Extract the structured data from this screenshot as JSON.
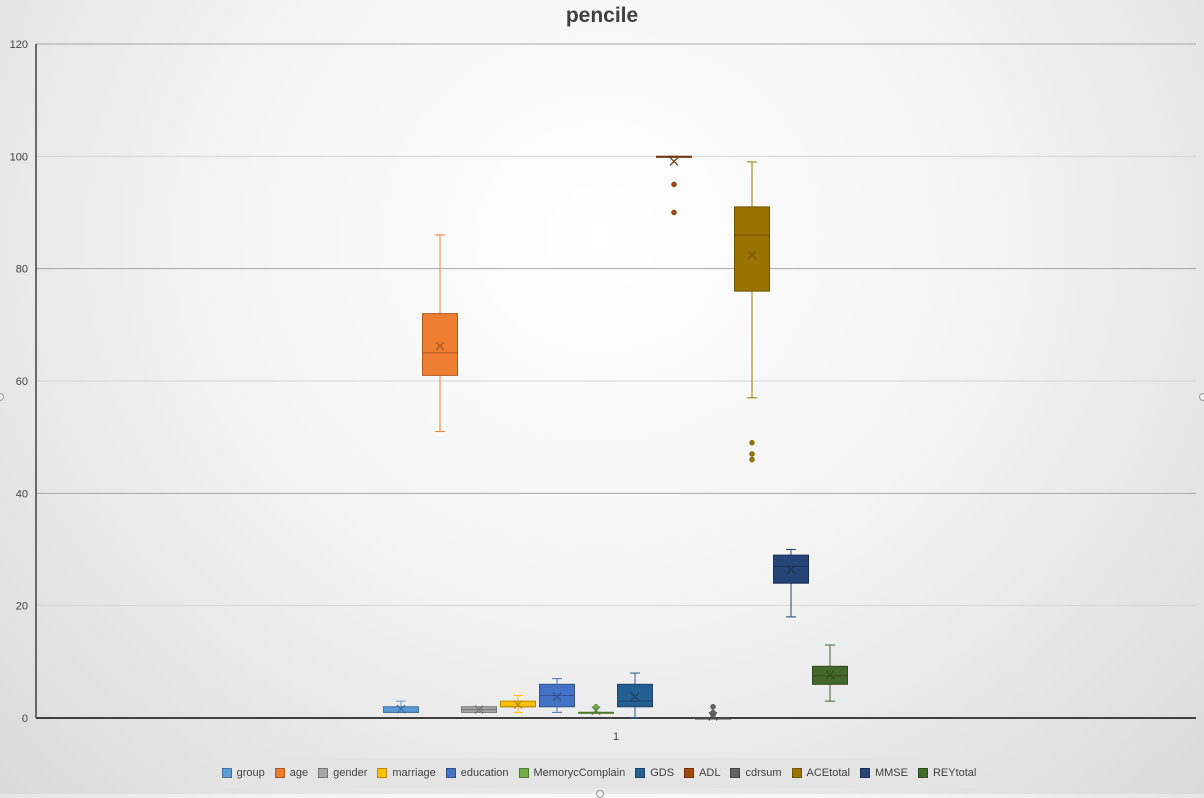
{
  "chart_data": {
    "type": "box",
    "title": "pencile",
    "xlabel": "",
    "ylabel": "",
    "categories": [
      "1"
    ],
    "ylim": [
      0,
      120
    ],
    "yticks": [
      0,
      20,
      40,
      60,
      80,
      100,
      120
    ],
    "grid": true,
    "legend_position": "bottom",
    "series": [
      {
        "name": "group",
        "color": "#5b9bd5",
        "min": 1,
        "q1": 1,
        "median": 1,
        "q3": 2,
        "max": 3,
        "mean": 1.6,
        "outliers": []
      },
      {
        "name": "age",
        "color": "#ed7d31",
        "min": 51,
        "q1": 61,
        "median": 65,
        "q3": 72,
        "max": 86,
        "mean": 66.2,
        "outliers": []
      },
      {
        "name": "gender",
        "color": "#a5a5a5",
        "min": 1,
        "q1": 1,
        "median": 1.5,
        "q3": 2,
        "max": 2,
        "mean": 1.5,
        "outliers": []
      },
      {
        "name": "marriage",
        "color": "#ffc000",
        "min": 1,
        "q1": 2,
        "median": 2,
        "q3": 3,
        "max": 4,
        "mean": 2.4,
        "outliers": []
      },
      {
        "name": "education",
        "color": "#4472c4",
        "min": 1,
        "q1": 2,
        "median": 4,
        "q3": 6,
        "max": 7,
        "mean": 3.8,
        "outliers": []
      },
      {
        "name": "MemorycComplain",
        "color": "#70ad47",
        "min": 1,
        "q1": 1,
        "median": 1,
        "q3": 1,
        "max": 1,
        "mean": 1.3,
        "outliers": [
          2
        ]
      },
      {
        "name": "GDS",
        "color": "#255e91",
        "min": 0,
        "q1": 2,
        "median": 3,
        "q3": 6,
        "max": 8,
        "mean": 3.8,
        "outliers": []
      },
      {
        "name": "ADL",
        "color": "#9e480e",
        "min": 100,
        "q1": 100,
        "median": 100,
        "q3": 100,
        "max": 100,
        "mean": 99.1,
        "outliers": [
          95,
          90
        ]
      },
      {
        "name": "cdrsum",
        "color": "#636363",
        "min": 0,
        "q1": 0,
        "median": 0,
        "q3": 0,
        "max": 0,
        "mean": 0.3,
        "outliers": [
          0.5,
          1,
          2
        ]
      },
      {
        "name": "ACEtotal",
        "color": "#997300",
        "min": 57,
        "q1": 76,
        "median": 86,
        "q3": 91,
        "max": 99,
        "mean": 82.4,
        "outliers": [
          49,
          47,
          46
        ]
      },
      {
        "name": "MMSE",
        "color": "#264478",
        "min": 18,
        "q1": 24,
        "median": 27,
        "q3": 29,
        "max": 30,
        "mean": 26.4,
        "outliers": []
      },
      {
        "name": "REYtotal",
        "color": "#43682b",
        "min": 3,
        "q1": 6,
        "median": 7.5,
        "q3": 9.2,
        "max": 13,
        "mean": 7.7,
        "outliers": []
      }
    ]
  }
}
